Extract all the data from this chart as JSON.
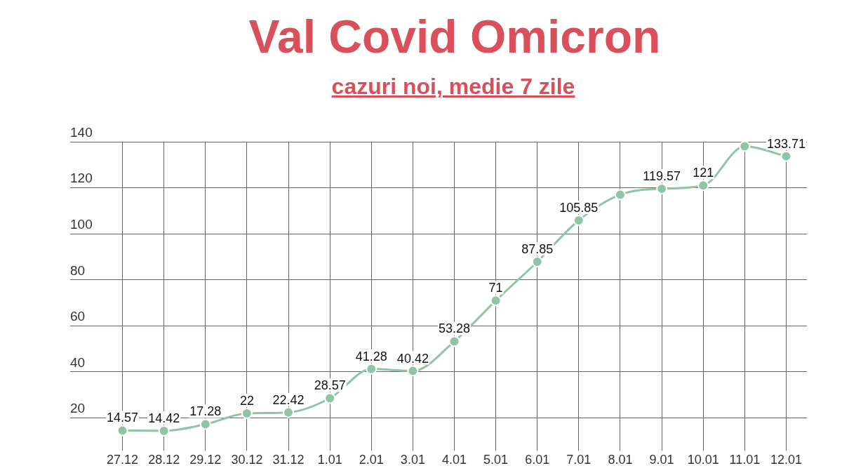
{
  "chart_data": {
    "type": "line",
    "title": "Val Covid Omicron",
    "subtitle": "cazuri noi, medie 7 zile",
    "categories": [
      "27.12",
      "28.12",
      "29.12",
      "30.12",
      "31.12",
      "1.01",
      "2.01",
      "3.01",
      "4.01",
      "5.01",
      "6.01",
      "7.01",
      "8.01",
      "9.01",
      "10.01",
      "11.01",
      "12.01"
    ],
    "series": [
      {
        "color": "#8fc4a6",
        "values": [
          14.57,
          14.42,
          17.28,
          22,
          22.42,
          28.57,
          41.28,
          40.42,
          53.28,
          71,
          87.85,
          105.85,
          117,
          119.57,
          121,
          138,
          133.71
        ],
        "value_labels": [
          "14.57",
          "14.42",
          "17.28",
          "22",
          "22.42",
          "28.57",
          "41.28",
          "40.42",
          "53.28",
          "71",
          "87.85",
          "105.85",
          null,
          "119.57",
          "121",
          null,
          "133.71"
        ]
      }
    ],
    "ylim": [
      10,
      140
    ],
    "yticks": [
      20,
      40,
      60,
      80,
      100,
      120,
      140
    ],
    "grid": true,
    "legend": false,
    "marker": "circle",
    "line_style": "solid"
  }
}
